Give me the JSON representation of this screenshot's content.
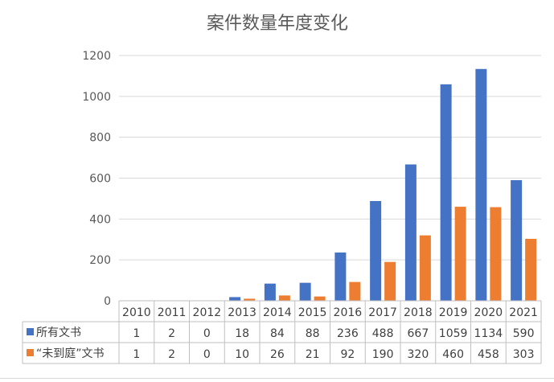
{
  "chart_data": {
    "type": "bar",
    "title": "案件数量年度变化",
    "categories": [
      "2010",
      "2011",
      "2012",
      "2013",
      "2014",
      "2015",
      "2016",
      "2017",
      "2018",
      "2019",
      "2020",
      "2021"
    ],
    "series": [
      {
        "name": "所有文书",
        "color": "#4472c4",
        "values": [
          1,
          2,
          0,
          18,
          84,
          88,
          236,
          488,
          667,
          1059,
          1134,
          590
        ]
      },
      {
        "name": "“未到庭”文书",
        "color": "#ed7d31",
        "values": [
          1,
          2,
          0,
          10,
          26,
          21,
          92,
          190,
          320,
          460,
          458,
          303
        ]
      }
    ],
    "ylim": [
      0,
      1200
    ],
    "yticks": [
      0,
      200,
      400,
      600,
      800,
      1000,
      1200
    ],
    "grid": true,
    "legend": "data-table",
    "data_table": true
  }
}
